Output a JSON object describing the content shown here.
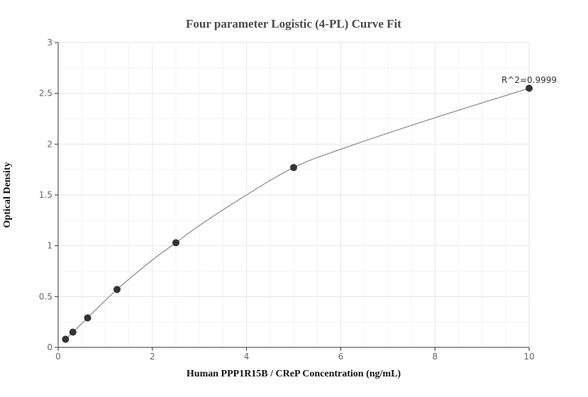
{
  "chart_data": {
    "type": "scatter",
    "title": "Four parameter Logistic (4-PL) Curve Fit",
    "xlabel": "Human PPP1R15B / CReP Concentration (ng/mL)",
    "ylabel": "Optical Density",
    "xlim": [
      0,
      10
    ],
    "ylim": [
      0,
      3
    ],
    "x_ticks": [
      0,
      2,
      4,
      6,
      8,
      10
    ],
    "y_ticks": [
      0,
      0.5,
      1,
      1.5,
      2,
      2.5,
      3
    ],
    "x_tick_labels": [
      "0",
      "2",
      "4",
      "6",
      "8",
      "10"
    ],
    "y_tick_labels": [
      "0",
      "0.5",
      "1",
      "1.5",
      "2",
      "2.5",
      "3"
    ],
    "grid": true,
    "points": {
      "x": [
        0.156,
        0.313,
        0.625,
        1.25,
        2.5,
        5,
        10
      ],
      "y": [
        0.08,
        0.15,
        0.29,
        0.57,
        1.03,
        1.77,
        2.55
      ]
    },
    "fit": {
      "model": "4-PL",
      "curve_x": [
        0.156,
        0.313,
        0.625,
        1.25,
        2.0,
        2.5,
        3.0,
        4.0,
        5.0,
        6.0,
        8.0,
        10.0
      ],
      "curve_y": [
        0.08,
        0.15,
        0.29,
        0.57,
        0.86,
        1.03,
        1.2,
        1.5,
        1.77,
        1.95,
        2.26,
        2.55
      ]
    },
    "annotation": "R^2=0.9999",
    "colors": {
      "point": "#333333",
      "curve": "#888888",
      "grid": "#e6e6e6",
      "axis": "#333333"
    }
  }
}
